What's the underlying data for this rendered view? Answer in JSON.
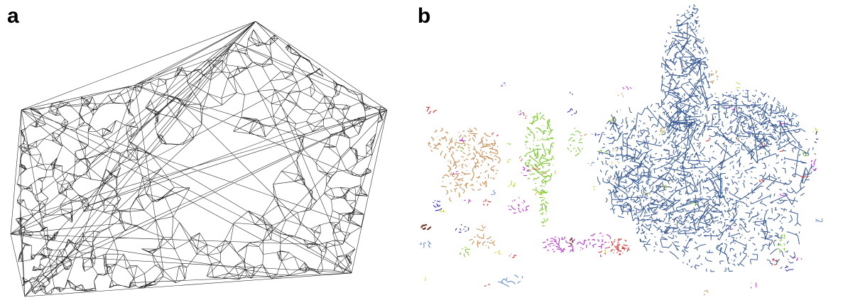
{
  "figure": {
    "panel_a_label": "a",
    "panel_b_label": "b"
  },
  "colors": {
    "mesh": "#1a1a1a",
    "large_component": "#3a5a92",
    "orange": "#c8915a",
    "green": "#7fc832",
    "purple": "#b438c8",
    "red": "#d42828",
    "blue": "#2828b4",
    "brown": "#6b2a1a",
    "yellow": "#c8c832",
    "light_blue": "#6b8fc8"
  }
}
